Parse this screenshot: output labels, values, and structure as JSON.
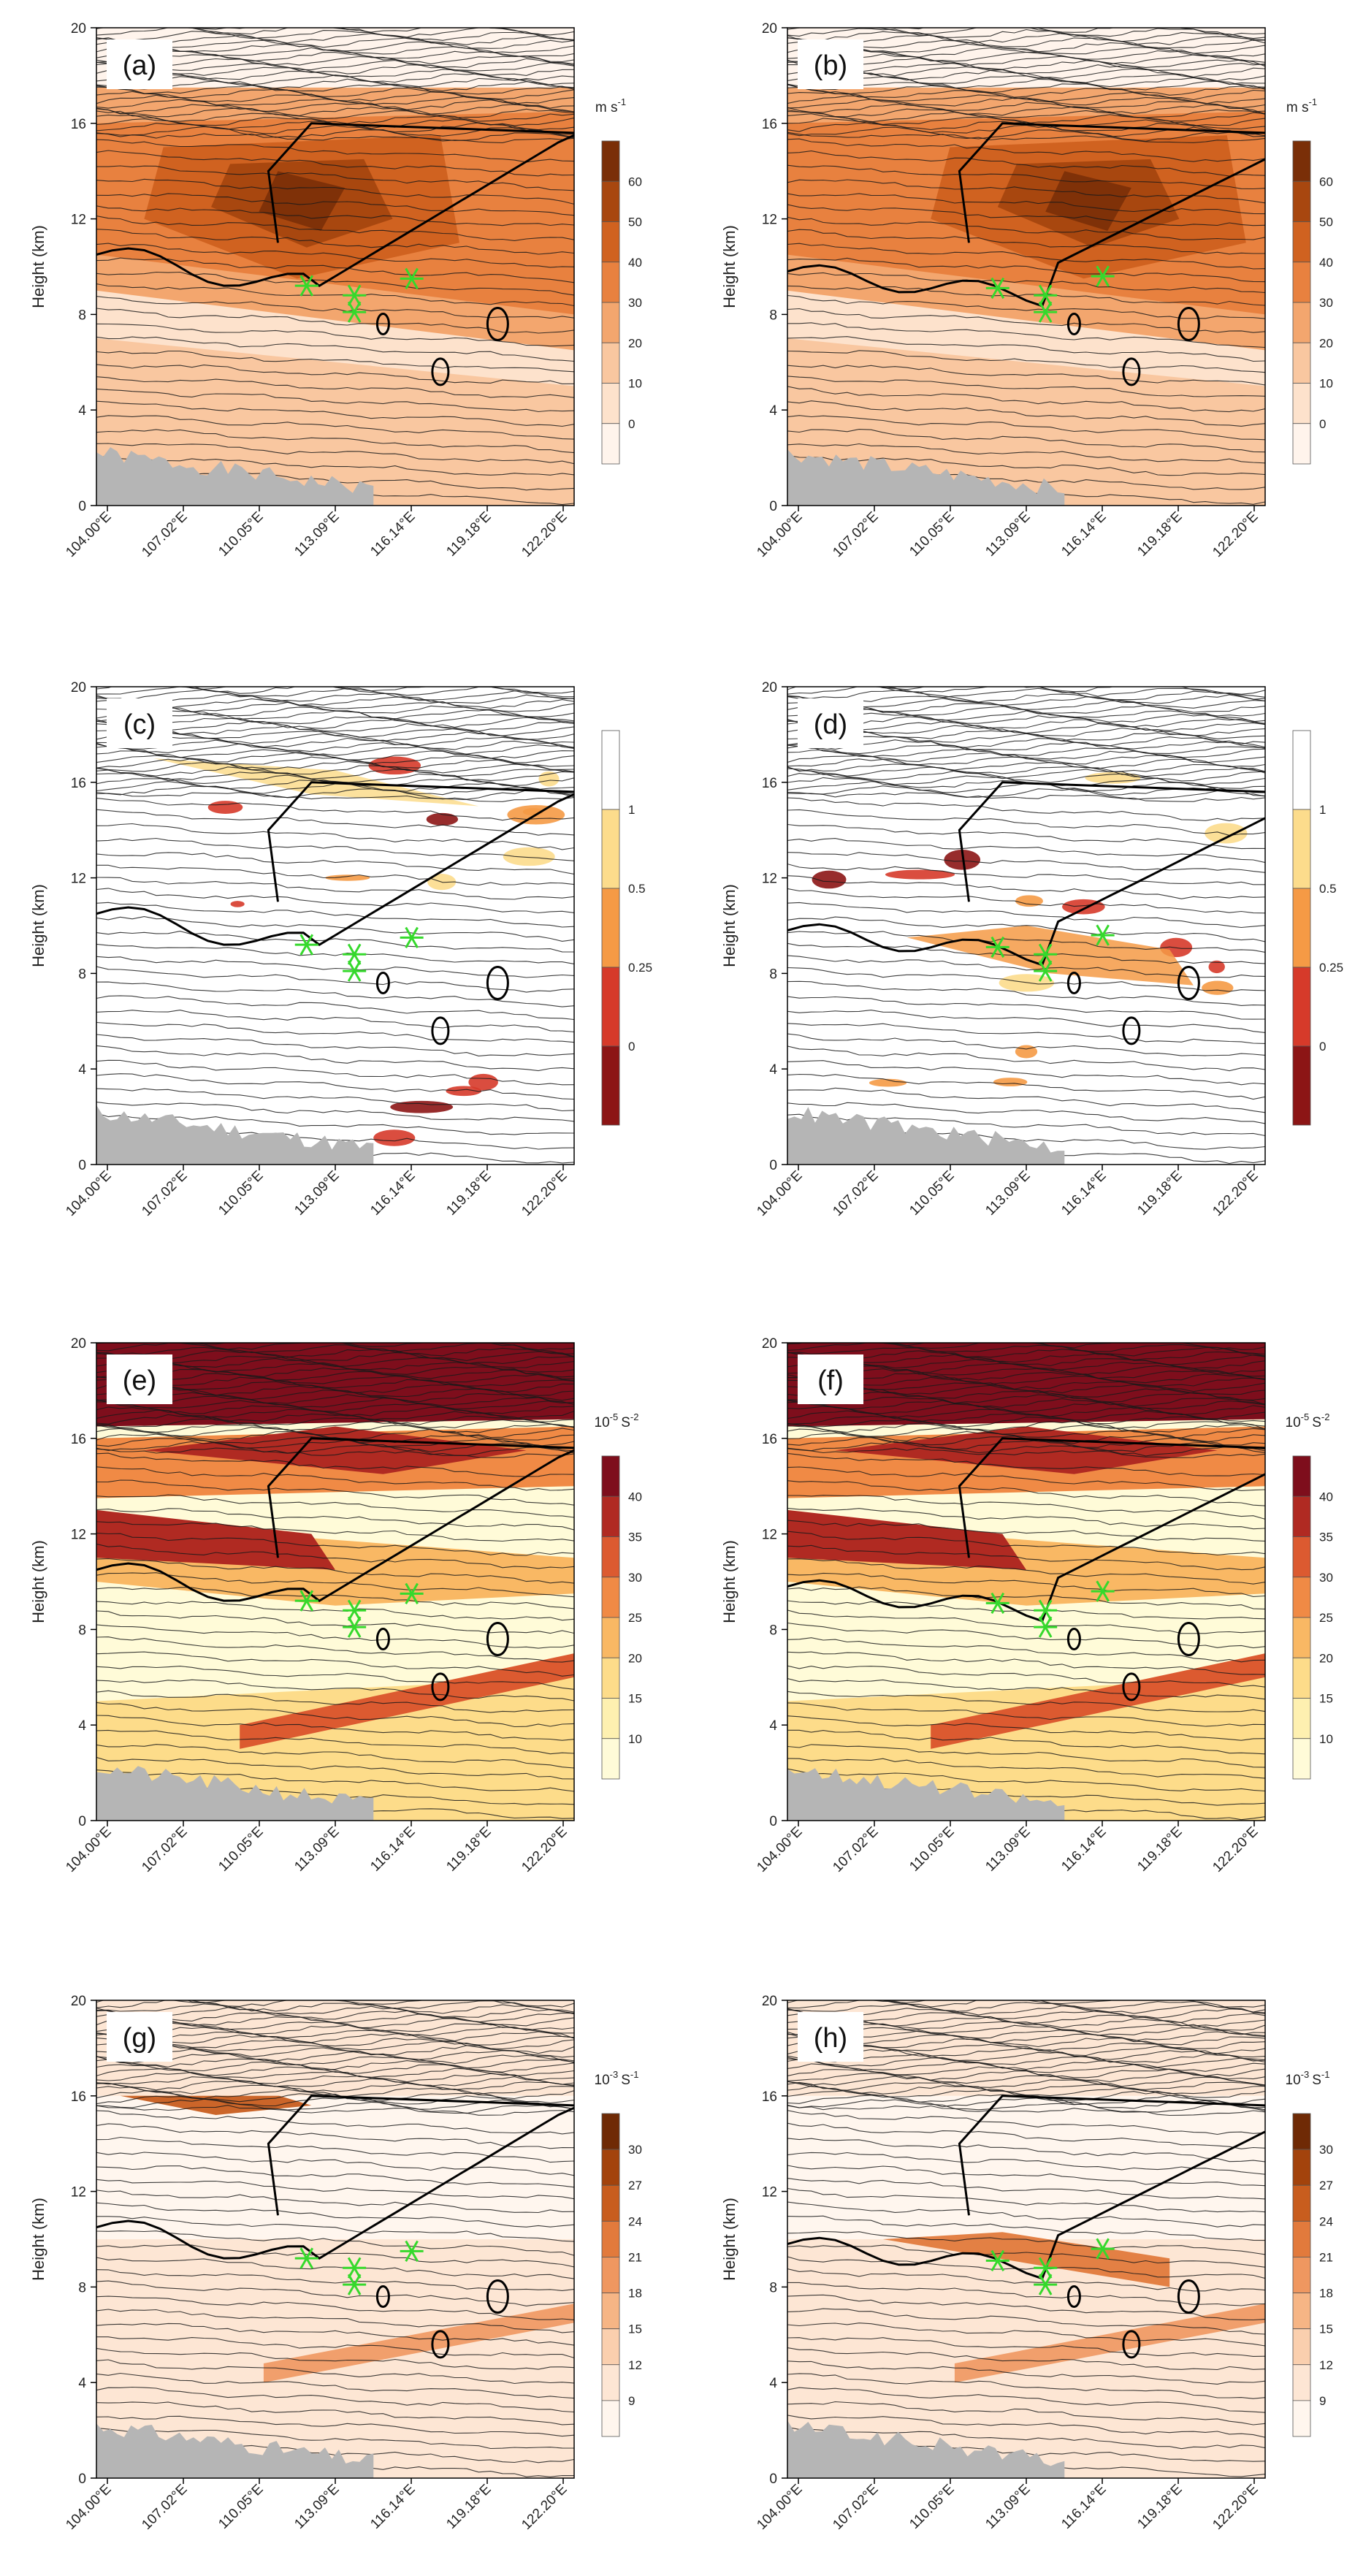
{
  "chart_data": [
    {
      "panel": "a",
      "type": "heatmap",
      "field": "wind",
      "ylabel": "Height (km)",
      "ylim": [
        0,
        20
      ],
      "yticks": [
        "0",
        "4",
        "8",
        "12",
        "16",
        "20"
      ],
      "xticks": [
        "104.00°E",
        "107.02°E",
        "110.05°E",
        "113.09°E",
        "116.14°E",
        "119.18°E",
        "122.20°E"
      ],
      "colorbar": {
        "unit": "m s",
        "unit_exp": "-1",
        "labels": [
          "0",
          "10",
          "20",
          "30",
          "40",
          "50",
          "60"
        ],
        "colors": [
          "#fff4ec",
          "#fde2cc",
          "#f9c7a0",
          "#f3a66e",
          "#e8813f",
          "#d06220",
          "#a8470f",
          "#7a2f08"
        ]
      }
    },
    {
      "panel": "b",
      "type": "heatmap",
      "field": "wind",
      "ylabel": "Height (km)",
      "ylim": [
        0,
        20
      ],
      "yticks": [
        "0",
        "4",
        "8",
        "12",
        "16",
        "20"
      ],
      "xticks": [
        "104.00°E",
        "107.02°E",
        "110.05°E",
        "113.09°E",
        "116.14°E",
        "119.18°E",
        "122.20°E"
      ],
      "colorbar": {
        "unit": "m s",
        "unit_exp": "-1",
        "labels": [
          "0",
          "10",
          "20",
          "30",
          "40",
          "50",
          "60"
        ],
        "colors": [
          "#fff4ec",
          "#fde2cc",
          "#f9c7a0",
          "#f3a66e",
          "#e8813f",
          "#d06220",
          "#a8470f",
          "#7a2f08"
        ]
      }
    },
    {
      "panel": "c",
      "type": "heatmap",
      "field": "ri",
      "ylabel": "Height (km)",
      "ylim": [
        0,
        20
      ],
      "yticks": [
        "0",
        "4",
        "8",
        "12",
        "16",
        "20"
      ],
      "xticks": [
        "104.00°E",
        "107.02°E",
        "110.05°E",
        "113.09°E",
        "116.14°E",
        "119.18°E",
        "122.20°E"
      ],
      "colorbar": {
        "unit": "",
        "unit_exp": "",
        "labels": [
          "0",
          "0.25",
          "0.5",
          "1"
        ],
        "colors": [
          "#8c1515",
          "#d63a2a",
          "#f59a45",
          "#fcdc8c",
          "#ffffff"
        ],
        "top_first": true
      }
    },
    {
      "panel": "d",
      "type": "heatmap",
      "field": "ri",
      "ylabel": "Height (km)",
      "ylim": [
        0,
        20
      ],
      "yticks": [
        "0",
        "4",
        "8",
        "12",
        "16",
        "20"
      ],
      "xticks": [
        "104.00°E",
        "107.02°E",
        "110.05°E",
        "113.09°E",
        "116.14°E",
        "119.18°E",
        "122.20°E"
      ],
      "colorbar": {
        "unit": "",
        "unit_exp": "",
        "labels": [
          "0",
          "0.25",
          "0.5",
          "1"
        ],
        "colors": [
          "#8c1515",
          "#d63a2a",
          "#f59a45",
          "#fcdc8c",
          "#ffffff"
        ],
        "top_first": true
      }
    },
    {
      "panel": "e",
      "type": "heatmap",
      "field": "n2",
      "ylabel": "Height (km)",
      "ylim": [
        0,
        20
      ],
      "yticks": [
        "0",
        "4",
        "8",
        "12",
        "16",
        "20"
      ],
      "xticks": [
        "104.00°E",
        "107.02°E",
        "110.05°E",
        "113.09°E",
        "116.14°E",
        "119.18°E",
        "122.20°E"
      ],
      "colorbar": {
        "unit": "10",
        "unit_exp": "-5",
        "unit_tail": "S",
        "unit_tail_exp": "-2",
        "labels": [
          "10",
          "15",
          "20",
          "25",
          "30",
          "35",
          "40"
        ],
        "colors": [
          "#fffbd8",
          "#fef0b0",
          "#fddc8a",
          "#f9b864",
          "#f08a45",
          "#dc5a30",
          "#b02a22",
          "#7e0e1c"
        ]
      }
    },
    {
      "panel": "f",
      "type": "heatmap",
      "field": "n2",
      "ylabel": "Height (km)",
      "ylim": [
        0,
        20
      ],
      "yticks": [
        "0",
        "4",
        "8",
        "12",
        "16",
        "20"
      ],
      "xticks": [
        "104.00°E",
        "107.02°E",
        "110.05°E",
        "113.09°E",
        "116.14°E",
        "119.18°E",
        "122.20°E"
      ],
      "colorbar": {
        "unit": "10",
        "unit_exp": "-5",
        "unit_tail": "S",
        "unit_tail_exp": "-2",
        "labels": [
          "10",
          "15",
          "20",
          "25",
          "30",
          "35",
          "40"
        ],
        "colors": [
          "#fffbd8",
          "#fef0b0",
          "#fddc8a",
          "#f9b864",
          "#f08a45",
          "#dc5a30",
          "#b02a22",
          "#7e0e1c"
        ]
      }
    },
    {
      "panel": "g",
      "type": "heatmap",
      "field": "shear",
      "ylabel": "Height (km)",
      "ylim": [
        0,
        20
      ],
      "yticks": [
        "0",
        "4",
        "8",
        "12",
        "16",
        "20"
      ],
      "xticks": [
        "104.00°E",
        "107.02°E",
        "110.05°E",
        "113.09°E",
        "116.14°E",
        "119.18°E",
        "122.20°E"
      ],
      "colorbar": {
        "unit": "10",
        "unit_exp": "-3",
        "unit_tail": "S",
        "unit_tail_exp": "-1",
        "labels": [
          "9",
          "12",
          "15",
          "18",
          "21",
          "24",
          "27",
          "30"
        ],
        "colors": [
          "#fff6ee",
          "#fde6d4",
          "#facfae",
          "#f6b585",
          "#ef9760",
          "#e27a3c",
          "#c85d1e",
          "#a3430c",
          "#6f2a05"
        ]
      }
    },
    {
      "panel": "h",
      "type": "heatmap",
      "field": "shear",
      "ylabel": "Height (km)",
      "ylim": [
        0,
        20
      ],
      "yticks": [
        "0",
        "4",
        "8",
        "12",
        "16",
        "20"
      ],
      "xticks": [
        "104.00°E",
        "107.02°E",
        "110.05°E",
        "113.09°E",
        "116.14°E",
        "119.18°E",
        "122.20°E"
      ],
      "colorbar": {
        "unit": "10",
        "unit_exp": "-3",
        "unit_tail": "S",
        "unit_tail_exp": "-1",
        "labels": [
          "9",
          "12",
          "15",
          "18",
          "21",
          "24",
          "27",
          "30"
        ],
        "colors": [
          "#fff6ee",
          "#fde6d4",
          "#facfae",
          "#f6b585",
          "#ef9760",
          "#e27a3c",
          "#c85d1e",
          "#a3430c",
          "#6f2a05"
        ]
      }
    }
  ],
  "colors": {
    "terrain": "#b5b5b5",
    "marker": "#35d92c",
    "isentrope": "#1a1a1a",
    "contour": "#000000"
  }
}
